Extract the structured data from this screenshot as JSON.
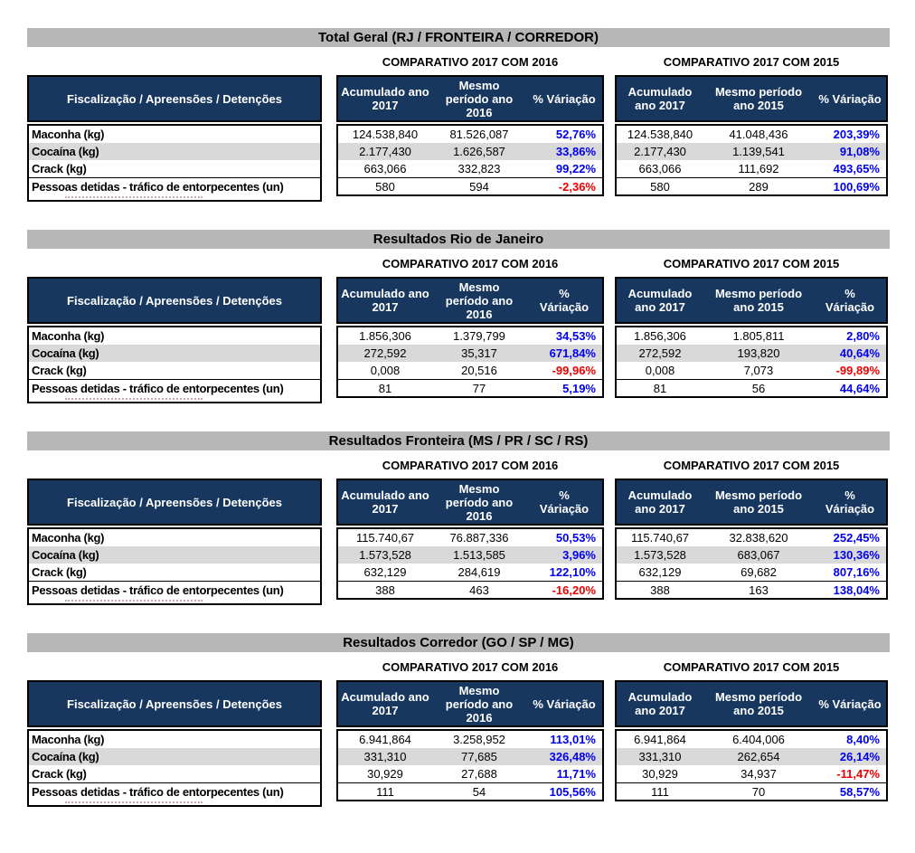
{
  "colors": {
    "header_navy": "#17375e",
    "title_bar_gray": "#b7b7b7",
    "zebra_gray": "#d9d9d9",
    "positive_blue": "#0000ee",
    "negative_red": "#ee0000"
  },
  "row_labels_header": "Fiscalização / Apreensões / Detenções",
  "row_labels": [
    "Maconha (kg)",
    "Cocaína (kg)",
    "Crack (kg)",
    "Pessoas detidas - tráfico de entorpecentes (un)"
  ],
  "sections": [
    {
      "title": "Total Geral (RJ / FRONTEIRA / CORREDOR)",
      "tables": [
        {
          "title": "COMPARATIVO 2017 COM 2016",
          "columns": [
            "Acumulado ano\n2017",
            "Mesmo\nperíodo ano\n2016",
            "% Váriação"
          ],
          "rows": [
            {
              "cells": [
                "124.538,840",
                "81.526,087"
              ],
              "variation": "52,76%",
              "trend": "pos"
            },
            {
              "cells": [
                "2.177,430",
                "1.626,587"
              ],
              "variation": "33,86%",
              "trend": "pos"
            },
            {
              "cells": [
                "663,066",
                "332,823"
              ],
              "variation": "99,22%",
              "trend": "pos"
            },
            {
              "cells": [
                "580",
                "594"
              ],
              "variation": "-2,36%",
              "trend": "neg"
            }
          ]
        },
        {
          "title": "COMPARATIVO 2017 COM 2015",
          "columns": [
            "Acumulado\nano 2017",
            "Mesmo período\nano 2015",
            "% Váriação"
          ],
          "rows": [
            {
              "cells": [
                "124.538,840",
                "41.048,436"
              ],
              "variation": "203,39%",
              "trend": "pos"
            },
            {
              "cells": [
                "2.177,430",
                "1.139,541"
              ],
              "variation": "91,08%",
              "trend": "pos"
            },
            {
              "cells": [
                "663,066",
                "111,692"
              ],
              "variation": "493,65%",
              "trend": "pos"
            },
            {
              "cells": [
                "580",
                "289"
              ],
              "variation": "100,69%",
              "trend": "pos"
            }
          ]
        }
      ]
    },
    {
      "title": "Resultados Rio de Janeiro",
      "tables": [
        {
          "title": "COMPARATIVO 2017 COM 2016",
          "columns": [
            "Acumulado ano\n2017",
            "Mesmo\nperíodo ano\n2016",
            "%\nVáriação"
          ],
          "rows": [
            {
              "cells": [
                "1.856,306",
                "1.379,799"
              ],
              "variation": "34,53%",
              "trend": "pos"
            },
            {
              "cells": [
                "272,592",
                "35,317"
              ],
              "variation": "671,84%",
              "trend": "pos"
            },
            {
              "cells": [
                "0,008",
                "20,516"
              ],
              "variation": "-99,96%",
              "trend": "neg"
            },
            {
              "cells": [
                "81",
                "77"
              ],
              "variation": "5,19%",
              "trend": "pos"
            }
          ]
        },
        {
          "title": "COMPARATIVO 2017 COM 2015",
          "columns": [
            "Acumulado\nano 2017",
            "Mesmo período\nano 2015",
            "%\nVáriação"
          ],
          "rows": [
            {
              "cells": [
                "1.856,306",
                "1.805,811"
              ],
              "variation": "2,80%",
              "trend": "pos"
            },
            {
              "cells": [
                "272,592",
                "193,820"
              ],
              "variation": "40,64%",
              "trend": "pos"
            },
            {
              "cells": [
                "0,008",
                "7,073"
              ],
              "variation": "-99,89%",
              "trend": "neg"
            },
            {
              "cells": [
                "81",
                "56"
              ],
              "variation": "44,64%",
              "trend": "pos"
            }
          ]
        }
      ]
    },
    {
      "title": "Resultados Fronteira (MS / PR / SC / RS)",
      "tables": [
        {
          "title": "COMPARATIVO 2017 COM 2016",
          "columns": [
            "Acumulado ano\n2017",
            "Mesmo\nperíodo ano\n2016",
            "%\nVáriação"
          ],
          "rows": [
            {
              "cells": [
                "115.740,67",
                "76.887,336"
              ],
              "variation": "50,53%",
              "trend": "pos"
            },
            {
              "cells": [
                "1.573,528",
                "1.513,585"
              ],
              "variation": "3,96%",
              "trend": "pos"
            },
            {
              "cells": [
                "632,129",
                "284,619"
              ],
              "variation": "122,10%",
              "trend": "pos"
            },
            {
              "cells": [
                "388",
                "463"
              ],
              "variation": "-16,20%",
              "trend": "neg"
            }
          ]
        },
        {
          "title": "COMPARATIVO 2017 COM 2015",
          "columns": [
            "Acumulado\nano 2017",
            "Mesmo período\nano 2015",
            "%\nVáriação"
          ],
          "rows": [
            {
              "cells": [
                "115.740,67",
                "32.838,620"
              ],
              "variation": "252,45%",
              "trend": "pos"
            },
            {
              "cells": [
                "1.573,528",
                "683,067"
              ],
              "variation": "130,36%",
              "trend": "pos"
            },
            {
              "cells": [
                "632,129",
                "69,682"
              ],
              "variation": "807,16%",
              "trend": "pos"
            },
            {
              "cells": [
                "388",
                "163"
              ],
              "variation": "138,04%",
              "trend": "pos"
            }
          ]
        }
      ]
    },
    {
      "title": "Resultados Corredor (GO / SP / MG)",
      "tables": [
        {
          "title": "COMPARATIVO 2017 COM 2016",
          "columns": [
            "Acumulado ano\n2017",
            "Mesmo\nperíodo ano\n2016",
            "% Váriação"
          ],
          "rows": [
            {
              "cells": [
                "6.941,864",
                "3.258,952"
              ],
              "variation": "113,01%",
              "trend": "pos"
            },
            {
              "cells": [
                "331,310",
                "77,685"
              ],
              "variation": "326,48%",
              "trend": "pos"
            },
            {
              "cells": [
                "30,929",
                "27,688"
              ],
              "variation": "11,71%",
              "trend": "pos"
            },
            {
              "cells": [
                "111",
                "54"
              ],
              "variation": "105,56%",
              "trend": "pos"
            }
          ]
        },
        {
          "title": "COMPARATIVO 2017 COM 2015",
          "columns": [
            "Acumulado\nano 2017",
            "Mesmo período\nano 2015",
            "% Váriação"
          ],
          "rows": [
            {
              "cells": [
                "6.941,864",
                "6.404,006"
              ],
              "variation": "8,40%",
              "trend": "pos"
            },
            {
              "cells": [
                "331,310",
                "262,654"
              ],
              "variation": "26,14%",
              "trend": "pos"
            },
            {
              "cells": [
                "30,929",
                "34,937"
              ],
              "variation": "-11,47%",
              "trend": "neg"
            },
            {
              "cells": [
                "111",
                "70"
              ],
              "variation": "58,57%",
              "trend": "pos"
            }
          ]
        }
      ]
    }
  ]
}
